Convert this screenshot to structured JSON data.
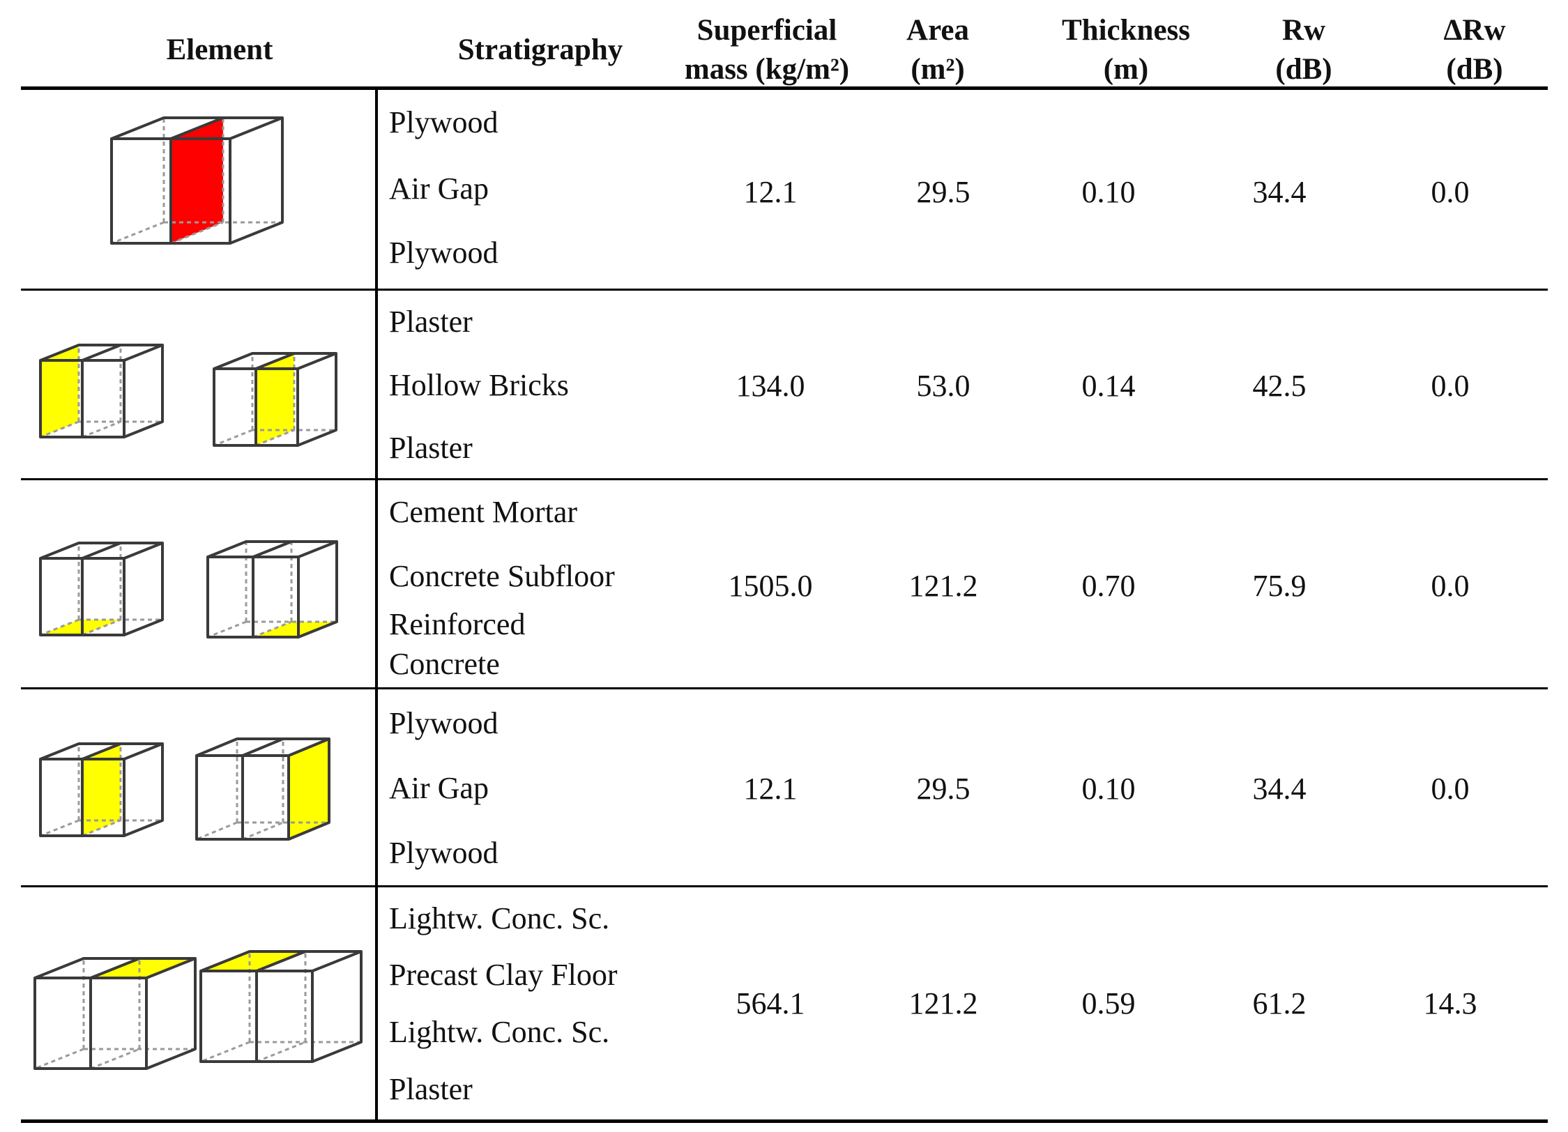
{
  "headers": {
    "element": "Element",
    "stratigraphy": "Stratigraphy",
    "mass": [
      "Superficial",
      "mass (kg/m²)"
    ],
    "area": [
      "Area",
      "(m²)"
    ],
    "thickness": [
      "Thickness",
      "(m)"
    ],
    "rw": [
      "Rw",
      "(dB)"
    ],
    "drw": [
      "ΔRw",
      "(dB)"
    ]
  },
  "colors": {
    "red": "#ff0000",
    "yellow": "#ffff00"
  },
  "rows": [
    {
      "icons": [
        "single-box-partition-red-icon"
      ],
      "layers": [
        "Plywood",
        "Air Gap",
        "Plywood"
      ],
      "mass": "12.1",
      "area": "29.5",
      "thickness": "0.10",
      "rw": "34.4",
      "drw": "0.0"
    },
    {
      "icons": [
        "double-box-left-wall-yellow-icon",
        "double-box-partition-yellow-icon"
      ],
      "layers": [
        "Plaster",
        "Hollow Bricks",
        "Plaster"
      ],
      "mass": "134.0",
      "area": "53.0",
      "thickness": "0.14",
      "rw": "42.5",
      "drw": "0.0"
    },
    {
      "icons": [
        "double-box-floor-left-yellow-icon",
        "double-box-floor-right-yellow-icon"
      ],
      "layers": [
        "Cement Mortar",
        "Concrete Subfloor",
        "Reinforced",
        "Concrete"
      ],
      "mass": "1505.0",
      "area": "121.2",
      "thickness": "0.70",
      "rw": "75.9",
      "drw": "0.0"
    },
    {
      "icons": [
        "double-box-partition-yellow-icon",
        "double-box-right-wall-yellow-icon"
      ],
      "layers": [
        "Plywood",
        "Air Gap",
        "Plywood"
      ],
      "mass": "12.1",
      "area": "29.5",
      "thickness": "0.10",
      "rw": "34.4",
      "drw": "0.0"
    },
    {
      "icons": [
        "double-box-ceiling-right-yellow-icon",
        "double-box-ceiling-left-yellow-icon"
      ],
      "layers": [
        "Lightw. Conc. Sc.",
        "Precast Clay Floor",
        "Lightw. Conc. Sc.",
        "Plaster"
      ],
      "mass": "564.1",
      "area": "121.2",
      "thickness": "0.59",
      "rw": "61.2",
      "drw": "14.3"
    }
  ]
}
